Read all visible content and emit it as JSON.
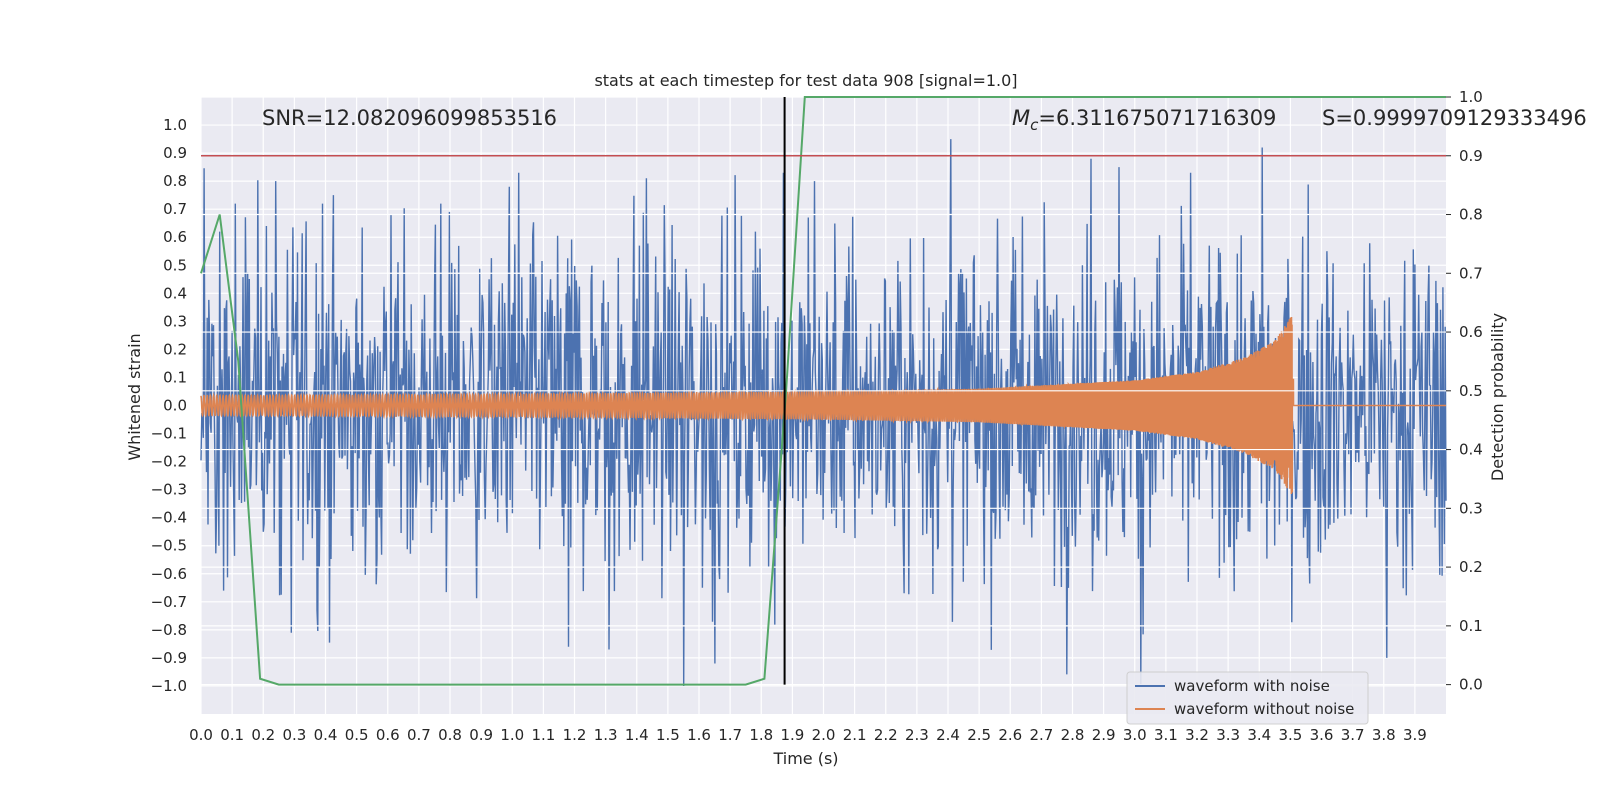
{
  "chart_data": {
    "type": "line",
    "title": "stats at each timestep for test data 908 [signal=1.0]",
    "xlabel": "Time (s)",
    "ylabel": "Whitened strain",
    "ylabel_right": "Detection probability",
    "xlim": [
      0.0,
      4.0
    ],
    "ylim": [
      -1.1,
      1.1
    ],
    "ylim_right": [
      -0.05,
      1.0
    ],
    "x_ticks": [
      "0.0",
      "0.1",
      "0.2",
      "0.3",
      "0.4",
      "0.5",
      "0.6",
      "0.7",
      "0.8",
      "0.9",
      "1.0",
      "1.1",
      "1.2",
      "1.3",
      "1.4",
      "1.5",
      "1.6",
      "1.7",
      "1.8",
      "1.9",
      "2.0",
      "2.1",
      "2.2",
      "2.3",
      "2.4",
      "2.5",
      "2.6",
      "2.7",
      "2.8",
      "2.9",
      "3.0",
      "3.1",
      "3.2",
      "3.3",
      "3.4",
      "3.5",
      "3.6",
      "3.7",
      "3.8",
      "3.9"
    ],
    "y_ticks": [
      "1.0",
      "0.9",
      "0.8",
      "0.7",
      "0.6",
      "0.5",
      "0.4",
      "0.3",
      "0.2",
      "0.1",
      "0.0",
      "−0.1",
      "−0.2",
      "−0.3",
      "−0.4",
      "−0.5",
      "−0.6",
      "−0.7",
      "−0.8",
      "−0.9",
      "−1.0"
    ],
    "y_ticks_right": [
      "1.0",
      "0.9",
      "0.8",
      "0.7",
      "0.6",
      "0.5",
      "0.4",
      "0.3",
      "0.2",
      "0.1",
      "0.0"
    ],
    "grid": true,
    "legend_position": "lower-right",
    "annotations": {
      "snr": "SNR=12.082096099853516",
      "mc_symbol": "M",
      "mc_sub": "c",
      "mc_value": "=6.311675071716309",
      "s": "S=0.9999709129333496"
    },
    "series": [
      {
        "name": "waveform with noise",
        "color": "#4c72b0",
        "description_axis": "left",
        "noise_amplitude_typical": 0.3,
        "spikes": [
          {
            "x": 0.06,
            "y": 0.62
          },
          {
            "x": 0.11,
            "y": 0.72
          },
          {
            "x": 0.21,
            "y": 0.64
          },
          {
            "x": 0.24,
            "y": 0.8
          },
          {
            "x": 0.29,
            "y": -0.81
          },
          {
            "x": 0.39,
            "y": 0.72
          },
          {
            "x": 0.61,
            "y": 0.68
          },
          {
            "x": 0.77,
            "y": 0.72
          },
          {
            "x": 0.99,
            "y": 0.78
          },
          {
            "x": 1.02,
            "y": 0.83
          },
          {
            "x": 1.18,
            "y": -0.86
          },
          {
            "x": 1.31,
            "y": -0.87
          },
          {
            "x": 1.43,
            "y": 0.81
          },
          {
            "x": 1.55,
            "y": -1.0
          },
          {
            "x": 1.65,
            "y": -0.92
          },
          {
            "x": 1.78,
            "y": 0.62
          },
          {
            "x": 1.87,
            "y": 0.83
          },
          {
            "x": 1.97,
            "y": 0.8
          },
          {
            "x": 2.41,
            "y": 0.95
          },
          {
            "x": 2.86,
            "y": 0.88
          },
          {
            "x": 2.95,
            "y": 0.85
          },
          {
            "x": 3.02,
            "y": -1.0
          },
          {
            "x": 3.18,
            "y": 0.83
          },
          {
            "x": 3.41,
            "y": 0.92
          },
          {
            "x": 3.81,
            "y": 0.8
          },
          {
            "x": 3.81,
            "y": -0.9
          }
        ]
      },
      {
        "name": "waveform without noise",
        "color": "#dd8452",
        "description_axis": "left",
        "chirp_amplitude": [
          {
            "x": 0.0,
            "y": 0.035
          },
          {
            "x": 1.0,
            "y": 0.04
          },
          {
            "x": 2.0,
            "y": 0.05
          },
          {
            "x": 2.5,
            "y": 0.06
          },
          {
            "x": 3.0,
            "y": 0.09
          },
          {
            "x": 3.2,
            "y": 0.12
          },
          {
            "x": 3.35,
            "y": 0.17
          },
          {
            "x": 3.45,
            "y": 0.23
          },
          {
            "x": 3.51,
            "y": 0.33
          },
          {
            "x": 3.52,
            "y": 0.0
          },
          {
            "x": 4.0,
            "y": 0.0
          }
        ],
        "merger_time": 3.51
      },
      {
        "name": "detection probability",
        "color": "#55a868",
        "axis": "right",
        "x": [
          0.0,
          0.06,
          0.12,
          0.19,
          0.25,
          0.5,
          1.0,
          1.5,
          1.75,
          1.81,
          1.88,
          1.94,
          2.5,
          3.0,
          3.5,
          4.0
        ],
        "y": [
          0.7,
          0.8,
          0.55,
          0.01,
          0.0,
          0.0,
          0.0,
          0.0,
          0.0,
          0.01,
          0.5,
          1.0,
          1.0,
          1.0,
          1.0,
          1.0
        ]
      }
    ],
    "reference_lines": [
      {
        "orientation": "horizontal",
        "axis": "right",
        "y": 0.9,
        "color": "#c44e52"
      },
      {
        "orientation": "vertical",
        "x": 1.875,
        "color": "#000000"
      }
    ]
  }
}
